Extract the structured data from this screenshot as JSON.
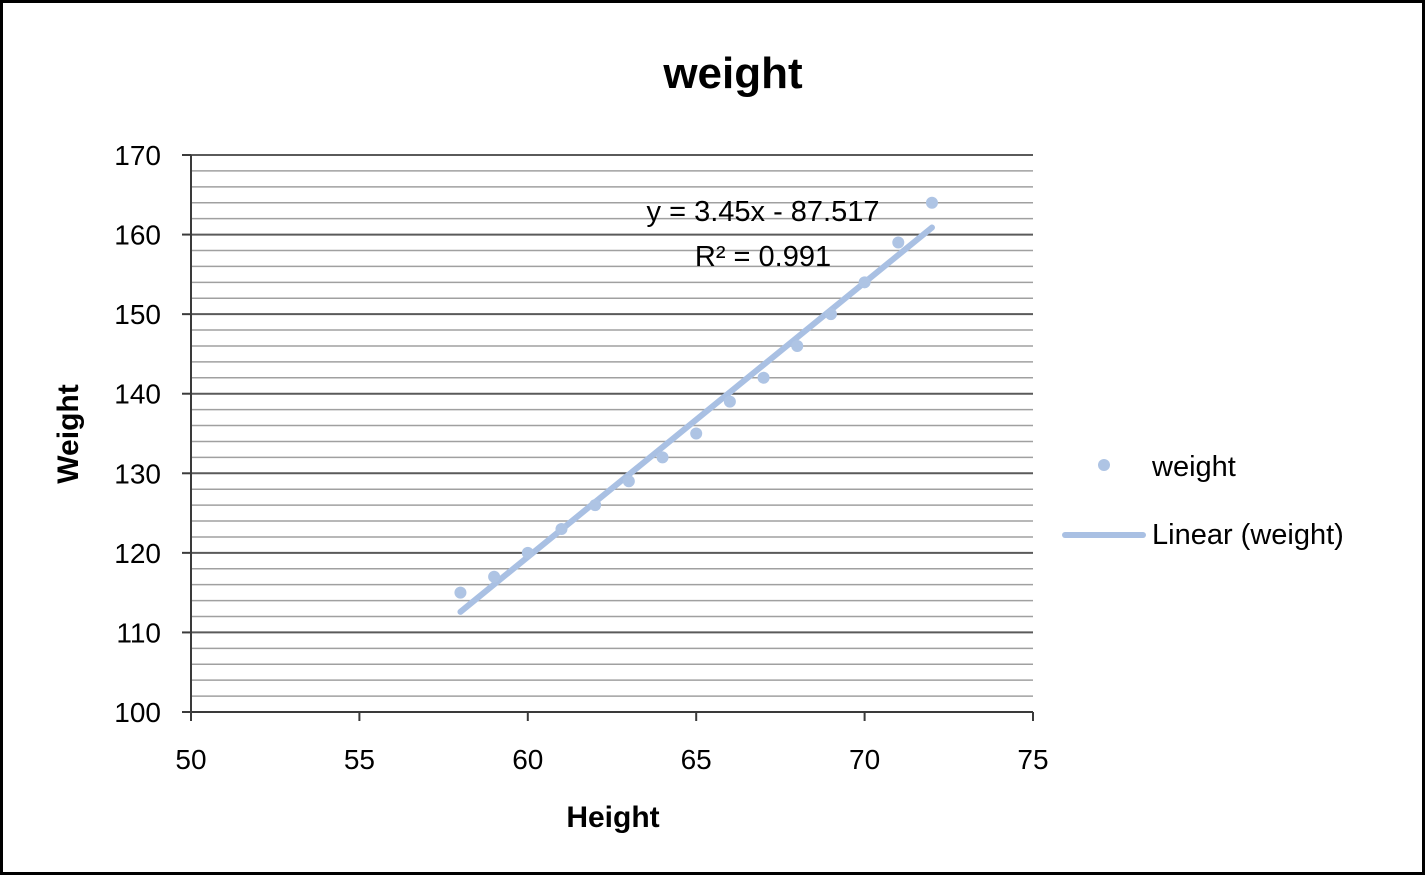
{
  "chart_data": {
    "type": "scatter",
    "title": "weight",
    "xlabel": "Height",
    "ylabel": "Weight",
    "xlim": [
      50,
      75
    ],
    "ylim": [
      100,
      170
    ],
    "x_ticks": [
      "50",
      "55",
      "60",
      "65",
      "70",
      "75"
    ],
    "y_ticks": [
      "100",
      "110",
      "120",
      "130",
      "140",
      "150",
      "160",
      "170"
    ],
    "grid": "major and minor horizontal gridlines",
    "legend_position": "right",
    "series": [
      {
        "name": "weight",
        "x": [
          58,
          59,
          60,
          61,
          62,
          63,
          64,
          65,
          66,
          67,
          68,
          69,
          70,
          71,
          72
        ],
        "y": [
          115,
          117,
          120,
          123,
          126,
          129,
          132,
          135,
          139,
          142,
          146,
          150,
          154,
          159,
          164
        ]
      }
    ],
    "trendline": {
      "name": "Linear (weight)",
      "slope": 3.45,
      "intercept": -87.517,
      "x_range": [
        58,
        72
      ],
      "equation_label": "y = 3.45x - 87.517",
      "r2_label": "R² = 0.991"
    },
    "colors": {
      "series": "#aec4e4",
      "trendline": "#a9c0e3",
      "major_grid": "#5a5a5a",
      "minor_grid": "#a0a0a0"
    }
  }
}
